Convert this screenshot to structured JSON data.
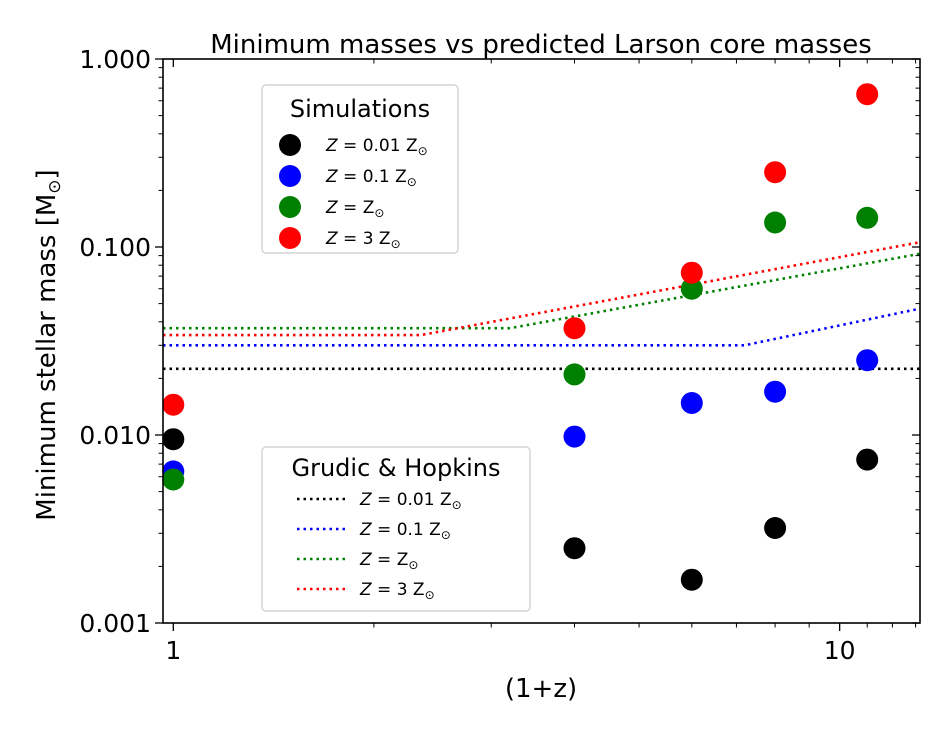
{
  "chart_data": {
    "type": "scatter",
    "title": "Minimum masses vs predicted Larson core masses",
    "xlabel": "(1+z)",
    "ylabel": "Minimum stellar mass [M",
    "ylabel_sub": "⊙",
    "ylabel_end": "]",
    "xscale": "log",
    "yscale": "log",
    "xlim": [
      0.965,
      13.2
    ],
    "ylim": [
      0.001,
      1.0
    ],
    "x_major_ticks": [
      {
        "value": 1,
        "label": "1"
      },
      {
        "value": 10,
        "label": "10"
      }
    ],
    "y_major_ticks": [
      {
        "value": 0.001,
        "label": "0.001"
      },
      {
        "value": 0.01,
        "label": "0.010"
      },
      {
        "value": 0.1,
        "label": "0.100"
      },
      {
        "value": 1.0,
        "label": "1.000"
      }
    ],
    "sim_series": [
      {
        "name_pre": "Z = 0.01 Z",
        "name_sub": "⊙",
        "color": "#000000",
        "x": [
          1,
          4,
          6,
          8,
          11
        ],
        "y": [
          0.0095,
          0.0025,
          0.0017,
          0.0032,
          0.0074
        ]
      },
      {
        "name_pre": "Z = 0.1 Z",
        "name_sub": "⊙",
        "color": "#0000ff",
        "x": [
          1,
          4,
          6,
          8,
          11
        ],
        "y": [
          0.0064,
          0.0098,
          0.0148,
          0.017,
          0.025
        ]
      },
      {
        "name_pre": "Z = Z",
        "name_sub": "⊙",
        "color": "#008000",
        "x": [
          1,
          4,
          6,
          8,
          11
        ],
        "y": [
          0.0058,
          0.021,
          0.06,
          0.135,
          0.143
        ]
      },
      {
        "name_pre": "Z = 3 Z",
        "name_sub": "⊙",
        "color": "#ff0000",
        "x": [
          1,
          4,
          6,
          8,
          11
        ],
        "y": [
          0.0145,
          0.037,
          0.073,
          0.25,
          0.65
        ]
      }
    ],
    "model_series": [
      {
        "name_pre": "Z = 0.01 Z",
        "name_sub": "⊙",
        "color": "#000000",
        "x": [
          0.965,
          13.2
        ],
        "y": [
          0.0225,
          0.0225
        ]
      },
      {
        "name_pre": "Z = 0.1 Z",
        "name_sub": "⊙",
        "color": "#0000ff",
        "x": [
          0.965,
          7.2,
          13.2
        ],
        "y": [
          0.03,
          0.03,
          0.047
        ]
      },
      {
        "name_pre": "Z = Z",
        "name_sub": "⊙",
        "color": "#008000",
        "x": [
          0.965,
          3.2,
          13.2
        ],
        "y": [
          0.037,
          0.037,
          0.092
        ]
      },
      {
        "name_pre": "Z = 3 Z",
        "name_sub": "⊙",
        "color": "#ff0000",
        "x": [
          0.965,
          2.35,
          13.2
        ],
        "y": [
          0.034,
          0.034,
          0.106
        ]
      }
    ],
    "legend_sim_title": "Simulations",
    "legend_model_title": "Grudic & Hopkins",
    "legend_sim_loc": "upper-left",
    "legend_model_loc": "lower-left"
  }
}
